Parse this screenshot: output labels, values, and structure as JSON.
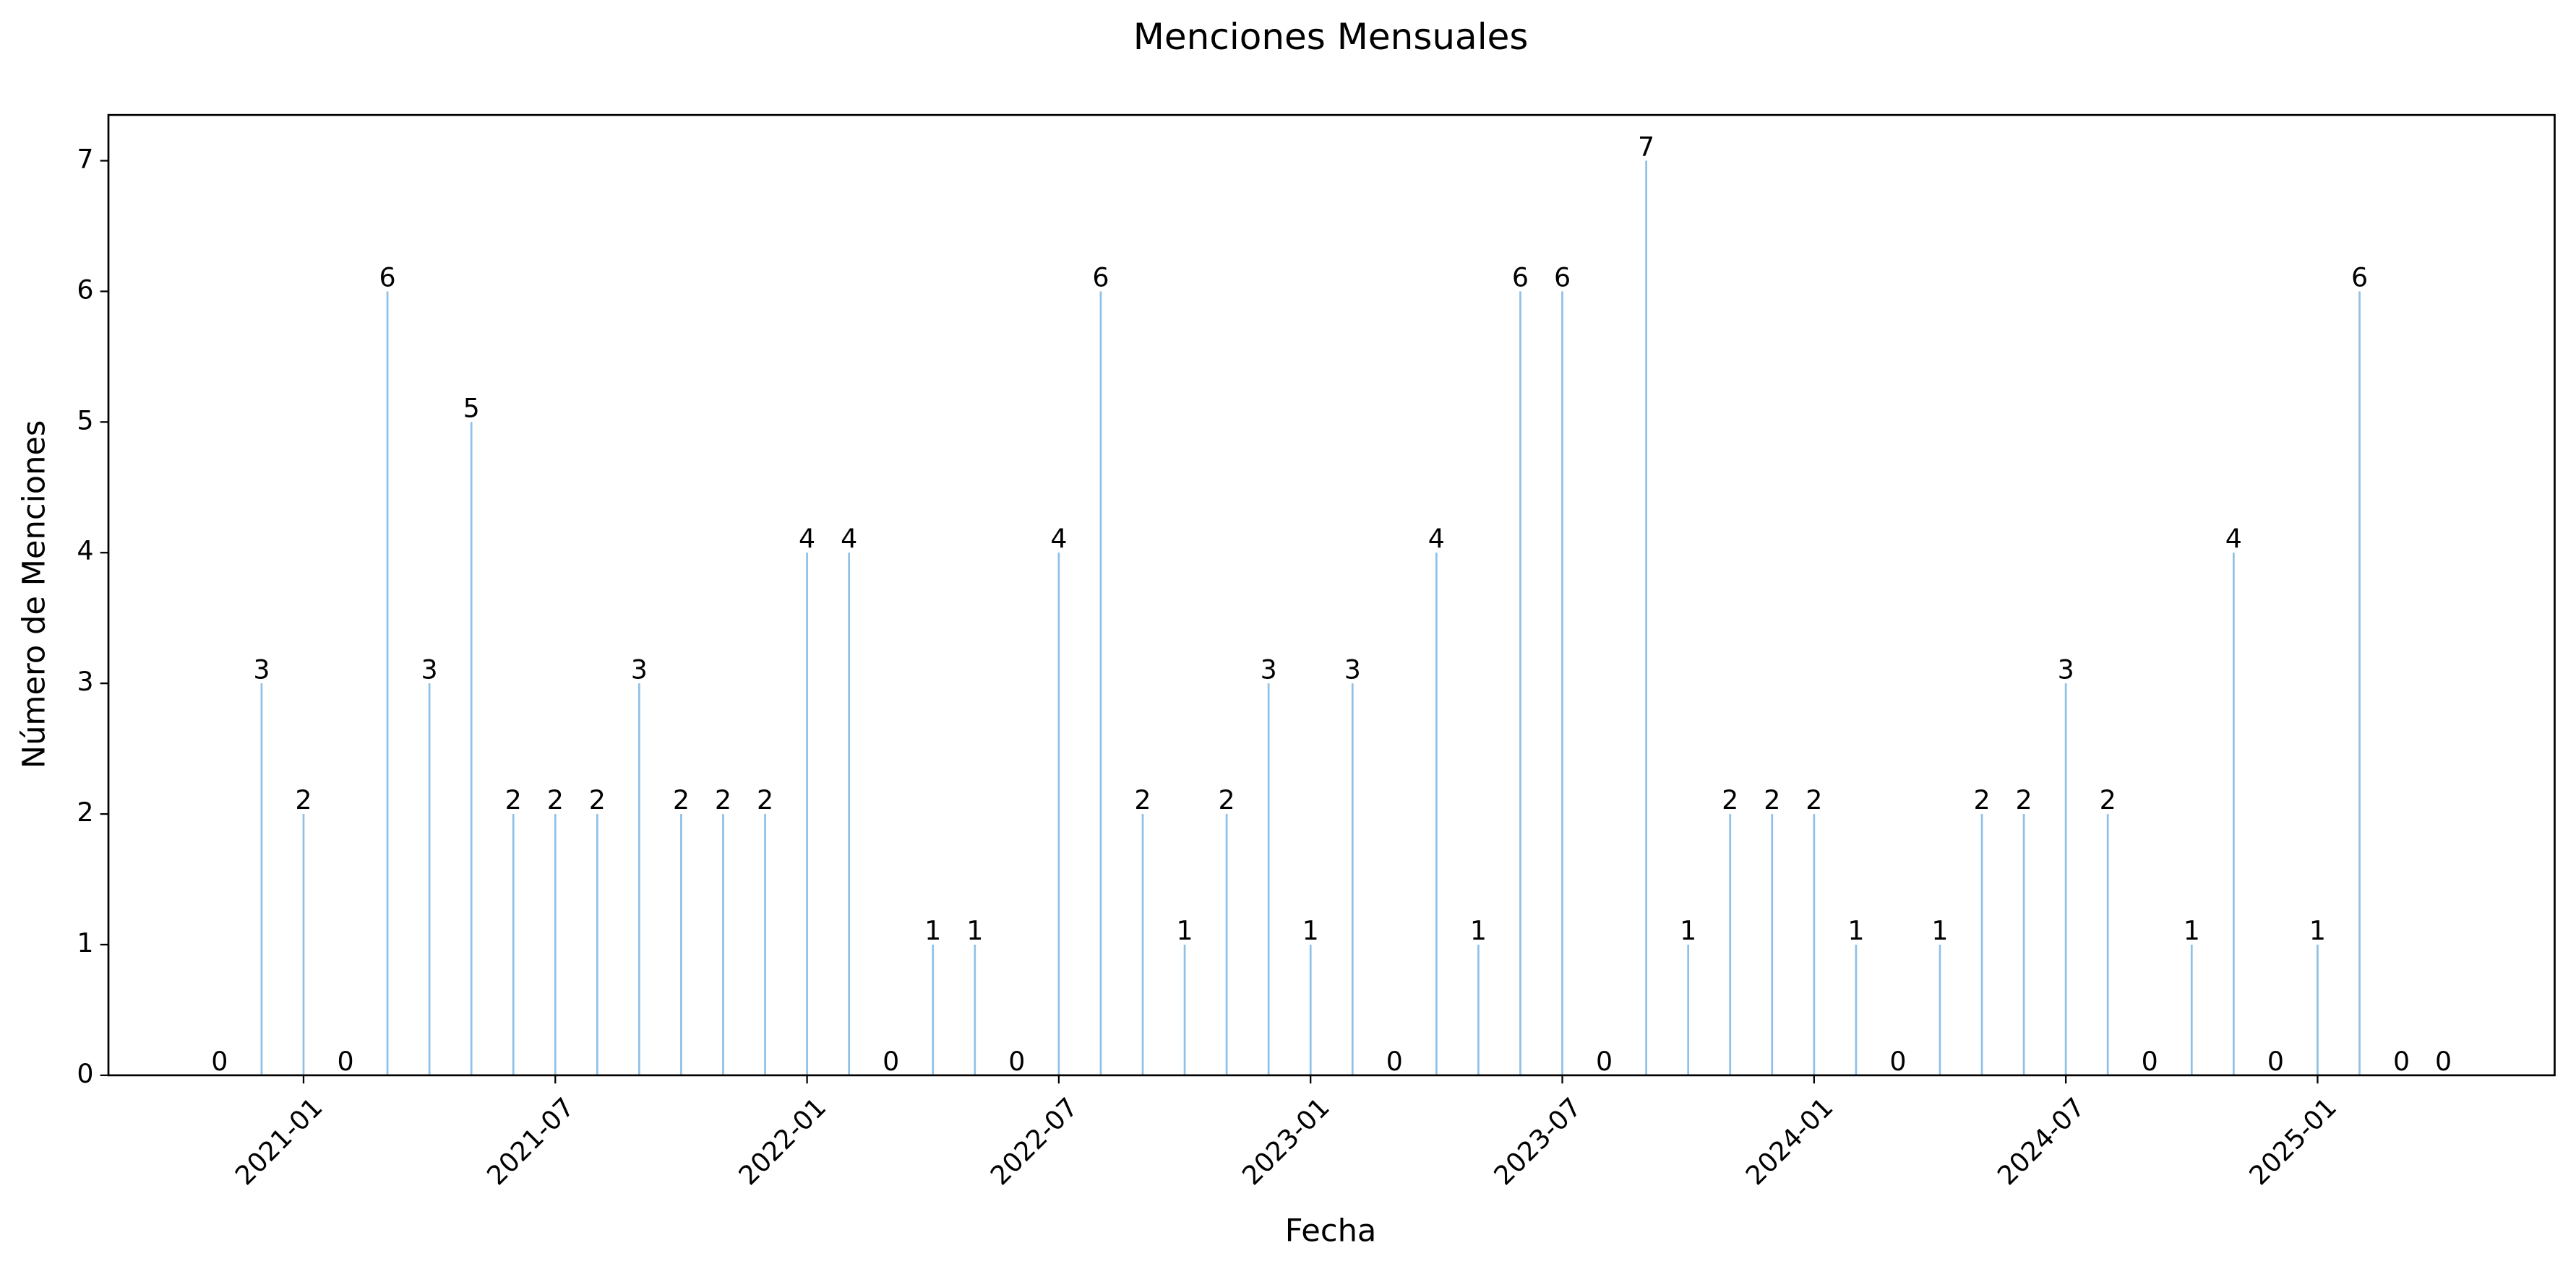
{
  "chart_data": {
    "type": "bar",
    "title": "Menciones Mensuales",
    "x_label": "Fecha",
    "y_label": "Número de Menciones",
    "x": [
      "2020-11",
      "2020-12",
      "2021-01",
      "2021-02",
      "2021-03",
      "2021-04",
      "2021-05",
      "2021-06",
      "2021-07",
      "2021-08",
      "2021-09",
      "2021-10",
      "2021-11",
      "2021-12",
      "2022-01",
      "2022-02",
      "2022-03",
      "2022-04",
      "2022-05",
      "2022-06",
      "2022-07",
      "2022-08",
      "2022-09",
      "2022-10",
      "2022-11",
      "2022-12",
      "2023-01",
      "2023-02",
      "2023-03",
      "2023-04",
      "2023-05",
      "2023-06",
      "2023-07",
      "2023-08",
      "2023-09",
      "2023-10",
      "2023-11",
      "2023-12",
      "2024-01",
      "2024-02",
      "2024-03",
      "2024-04",
      "2024-05",
      "2024-06",
      "2024-07",
      "2024-08",
      "2024-09",
      "2024-10",
      "2024-11",
      "2024-12",
      "2025-01",
      "2025-02",
      "2025-03",
      "2025-04"
    ],
    "values": [
      0,
      3,
      2,
      0,
      6,
      3,
      5,
      2,
      2,
      2,
      3,
      2,
      2,
      2,
      4,
      4,
      0,
      1,
      1,
      0,
      4,
      6,
      2,
      1,
      2,
      3,
      1,
      3,
      0,
      4,
      1,
      6,
      6,
      0,
      7,
      1,
      2,
      2,
      2,
      1,
      0,
      1,
      2,
      2,
      3,
      2,
      0,
      1,
      4,
      0,
      1,
      6,
      0,
      0
    ],
    "color": "#8fc1e8",
    "xlim": [
      "2020-08",
      "2025-07"
    ],
    "xticks": [
      "2021-01",
      "2021-07",
      "2022-01",
      "2022-07",
      "2023-01",
      "2023-07",
      "2024-01",
      "2024-07",
      "2025-01"
    ],
    "ylim": [
      0,
      7.35
    ],
    "yticks": [
      0,
      1,
      2,
      3,
      4,
      5,
      6,
      7
    ],
    "grid": false
  }
}
